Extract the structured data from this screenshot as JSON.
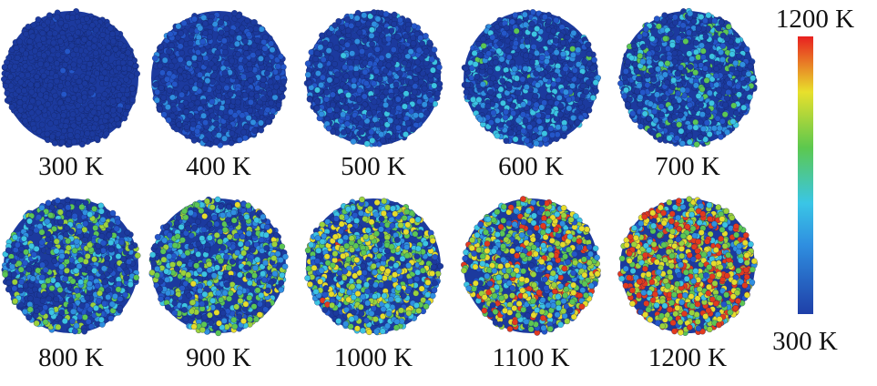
{
  "panels": [
    {
      "label": "300 K"
    },
    {
      "label": "400 K"
    },
    {
      "label": "500 K"
    },
    {
      "label": "600 K"
    },
    {
      "label": "700 K"
    },
    {
      "label": "800 K"
    },
    {
      "label": "900 K"
    },
    {
      "label": "1000 K"
    },
    {
      "label": "1100 K"
    },
    {
      "label": "1200 K"
    }
  ],
  "colorbar": {
    "max_label": "1200 K",
    "min_label": "300 K"
  }
}
